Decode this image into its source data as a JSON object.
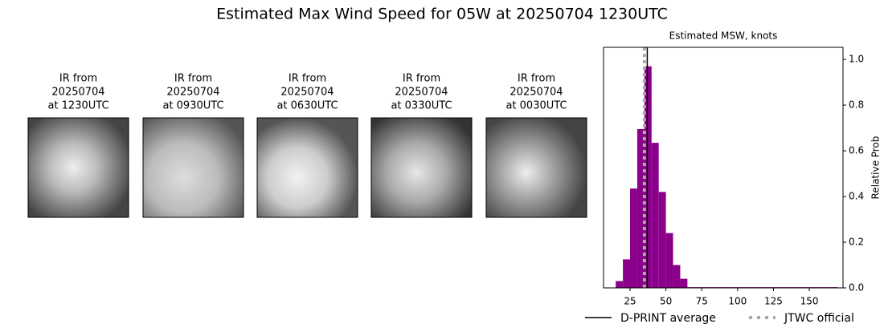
{
  "title": "Estimated Max Wind Speed for 05W at 20250704 1230UTC",
  "panels": [
    {
      "lines": [
        "IR from",
        "20250704",
        "at 1230UTC"
      ]
    },
    {
      "lines": [
        "IR from",
        "20250704",
        "at 0930UTC"
      ]
    },
    {
      "lines": [
        "IR from",
        "20250704",
        "at 0630UTC"
      ]
    },
    {
      "lines": [
        "IR from",
        "20250704",
        "at 0330UTC"
      ]
    },
    {
      "lines": [
        "IR from",
        "20250704",
        "at 0030UTC"
      ]
    }
  ],
  "chart_data": {
    "type": "histogram",
    "title": "Estimated MSW, knots",
    "ylabel": "Relative Prob",
    "color": "#8b008b",
    "bins": [
      15,
      20,
      25,
      30,
      35,
      40,
      45,
      50,
      55,
      60,
      65,
      70,
      75,
      80,
      85,
      90,
      95,
      100,
      105,
      110,
      115,
      120,
      125,
      130,
      135,
      140,
      145,
      150,
      155,
      160,
      165,
      170
    ],
    "values": [
      0.03,
      0.125,
      0.435,
      0.695,
      0.97,
      0.635,
      0.42,
      0.24,
      0.1,
      0.04,
      0.003,
      0.003,
      0.003,
      0.003,
      0.003,
      0.003,
      0.003,
      0.003,
      0.003,
      0.003,
      0.003,
      0.003,
      0.003,
      0.003,
      0.003,
      0.003,
      0.003,
      0.003,
      0.003,
      0.003,
      0.003
    ],
    "xlim": [
      6.5,
      173.5
    ],
    "ylim": [
      0,
      1.053
    ],
    "xticks": [
      25,
      50,
      75,
      100,
      125,
      150
    ],
    "yticks": [
      {
        "value": 0,
        "label": "0.0"
      },
      {
        "value": 0.2,
        "label": "0.2"
      },
      {
        "value": 0.4,
        "label": "0.4"
      },
      {
        "value": 0.6,
        "label": "0.6"
      },
      {
        "value": 0.8,
        "label": "0.8"
      },
      {
        "value": 1.0,
        "label": "1.0"
      }
    ],
    "lines": [
      {
        "name": "D-PRINT average",
        "value": 37,
        "color": "#000000",
        "style": "solid"
      },
      {
        "name": "JTWC official",
        "value": 35,
        "color": "#aaaaaa",
        "style": "dotted"
      }
    ]
  }
}
